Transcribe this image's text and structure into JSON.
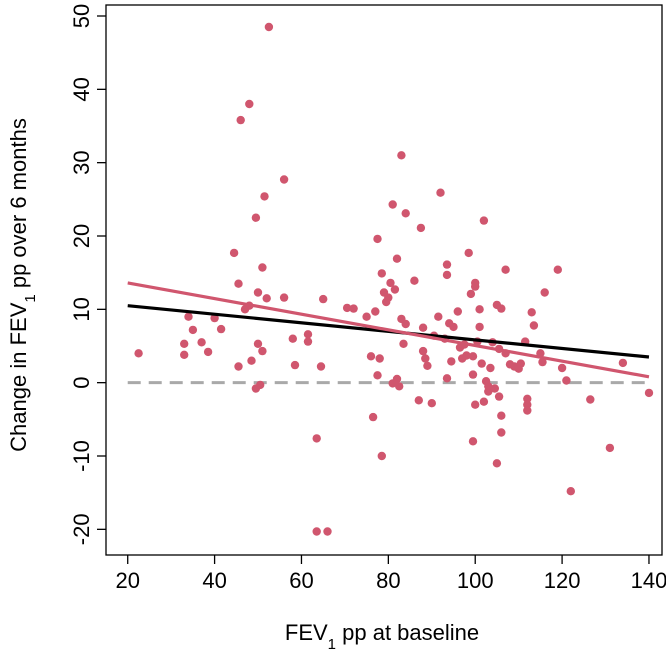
{
  "chart_data": {
    "type": "scatter",
    "xlabel": {
      "pre": "FEV",
      "sub": "1",
      "post": " pp at baseline"
    },
    "ylabel": {
      "pre": "Change in FEV",
      "sub": "1",
      "post": " pp over 6 months"
    },
    "xlim": [
      15,
      143
    ],
    "ylim": [
      -23.5,
      51.5
    ],
    "xticks": [
      20,
      40,
      60,
      80,
      100,
      120,
      140
    ],
    "yticks": [
      -20,
      -10,
      0,
      10,
      20,
      30,
      40,
      50
    ],
    "colors": {
      "points": "#d0566e",
      "fit_red": "#d0566e",
      "fit_black": "#000000",
      "zero_line": "#a9a9a9"
    },
    "reference_line": {
      "y": 0,
      "x": [
        20,
        140
      ],
      "style": "dashed"
    },
    "fit_lines": [
      {
        "name": "black-fit",
        "x": [
          20,
          140
        ],
        "y": [
          10.5,
          3.5
        ]
      },
      {
        "name": "red-fit",
        "x": [
          20,
          140
        ],
        "y": [
          13.6,
          0.8
        ]
      }
    ],
    "points": [
      [
        22.5,
        4.0
      ],
      [
        33,
        5.3
      ],
      [
        33,
        3.8
      ],
      [
        34,
        9.0
      ],
      [
        35,
        7.2
      ],
      [
        37,
        5.5
      ],
      [
        38.5,
        4.2
      ],
      [
        40,
        8.8
      ],
      [
        41.5,
        7.3
      ],
      [
        44.5,
        17.7
      ],
      [
        45.5,
        13.5
      ],
      [
        45.5,
        2.2
      ],
      [
        46,
        35.8
      ],
      [
        47,
        10.0
      ],
      [
        48,
        38.0
      ],
      [
        48,
        10.5
      ],
      [
        48.5,
        3.0
      ],
      [
        49.5,
        22.5
      ],
      [
        49.5,
        -0.8
      ],
      [
        50,
        5.3
      ],
      [
        50,
        12.3
      ],
      [
        50.5,
        -0.3
      ],
      [
        51,
        15.7
      ],
      [
        51,
        4.3
      ],
      [
        51.5,
        25.4
      ],
      [
        52,
        11.5
      ],
      [
        52.5,
        48.5
      ],
      [
        56,
        27.7
      ],
      [
        56,
        11.6
      ],
      [
        58,
        6.0
      ],
      [
        58.5,
        2.4
      ],
      [
        61.5,
        6.6
      ],
      [
        61.5,
        5.6
      ],
      [
        63.5,
        -7.6
      ],
      [
        63.5,
        -20.3
      ],
      [
        64.5,
        2.2
      ],
      [
        65,
        11.4
      ],
      [
        66,
        -20.3
      ],
      [
        70.5,
        10.2
      ],
      [
        72,
        10.1
      ],
      [
        75,
        9.0
      ],
      [
        76,
        3.6
      ],
      [
        76.5,
        -4.7
      ],
      [
        77,
        9.7
      ],
      [
        77.5,
        1.0
      ],
      [
        77.5,
        19.6
      ],
      [
        78,
        3.3
      ],
      [
        78.5,
        14.9
      ],
      [
        78.5,
        -10.0
      ],
      [
        79,
        12.3
      ],
      [
        79.5,
        11.0
      ],
      [
        80,
        11.6
      ],
      [
        80.5,
        13.6
      ],
      [
        81,
        24.3
      ],
      [
        81,
        -0.1
      ],
      [
        81.5,
        12.7
      ],
      [
        82,
        0.5
      ],
      [
        82,
        16.9
      ],
      [
        82.5,
        -0.5
      ],
      [
        83,
        8.7
      ],
      [
        83,
        31.0
      ],
      [
        83.5,
        5.3
      ],
      [
        84,
        23.1
      ],
      [
        84,
        8.0
      ],
      [
        86,
        13.9
      ],
      [
        87,
        -2.4
      ],
      [
        87.5,
        21.1
      ],
      [
        88,
        4.3
      ],
      [
        88,
        7.5
      ],
      [
        88.5,
        3.3
      ],
      [
        89,
        2.3
      ],
      [
        90,
        -2.8
      ],
      [
        90.5,
        6.4
      ],
      [
        91.5,
        9.0
      ],
      [
        92,
        25.9
      ],
      [
        93,
        6.0
      ],
      [
        93.5,
        16.1
      ],
      [
        93.5,
        14.7
      ],
      [
        93.5,
        0.6
      ],
      [
        94,
        8.1
      ],
      [
        94.5,
        2.9
      ],
      [
        95,
        7.6
      ],
      [
        96,
        9.7
      ],
      [
        96.5,
        4.8
      ],
      [
        97,
        3.3
      ],
      [
        97.5,
        5.2
      ],
      [
        98,
        3.7
      ],
      [
        98.5,
        17.7
      ],
      [
        99,
        12.1
      ],
      [
        99.5,
        3.6
      ],
      [
        99.5,
        -8.0
      ],
      [
        99.5,
        1.1
      ],
      [
        100,
        -3.0
      ],
      [
        100,
        13.6
      ],
      [
        100,
        13.1
      ],
      [
        100.5,
        5.6
      ],
      [
        101,
        10.0
      ],
      [
        101,
        7.6
      ],
      [
        101.5,
        2.6
      ],
      [
        102,
        22.1
      ],
      [
        102,
        -2.6
      ],
      [
        102.5,
        0.2
      ],
      [
        103,
        -1.2
      ],
      [
        103,
        -0.5
      ],
      [
        103.5,
        2.0
      ],
      [
        104,
        5.5
      ],
      [
        104.5,
        -0.8
      ],
      [
        105,
        10.6
      ],
      [
        105,
        -11.0
      ],
      [
        105.5,
        -1.9
      ],
      [
        105.5,
        4.6
      ],
      [
        106,
        -4.5
      ],
      [
        106,
        -6.8
      ],
      [
        106,
        10.1
      ],
      [
        107,
        15.4
      ],
      [
        107,
        4.0
      ],
      [
        108,
        2.5
      ],
      [
        109,
        2.2
      ],
      [
        110,
        1.9
      ],
      [
        110.5,
        2.6
      ],
      [
        111.5,
        5.6
      ],
      [
        112,
        -2.2
      ],
      [
        112,
        -3.0
      ],
      [
        112,
        -3.8
      ],
      [
        113,
        9.6
      ],
      [
        113.5,
        7.8
      ],
      [
        115,
        4.0
      ],
      [
        115.5,
        2.8
      ],
      [
        116,
        12.3
      ],
      [
        119,
        15.4
      ],
      [
        120,
        2.0
      ],
      [
        121,
        0.3
      ],
      [
        122,
        -14.8
      ],
      [
        126.5,
        -2.3
      ],
      [
        131,
        -8.9
      ],
      [
        134,
        2.7
      ],
      [
        140,
        -1.4
      ]
    ]
  }
}
